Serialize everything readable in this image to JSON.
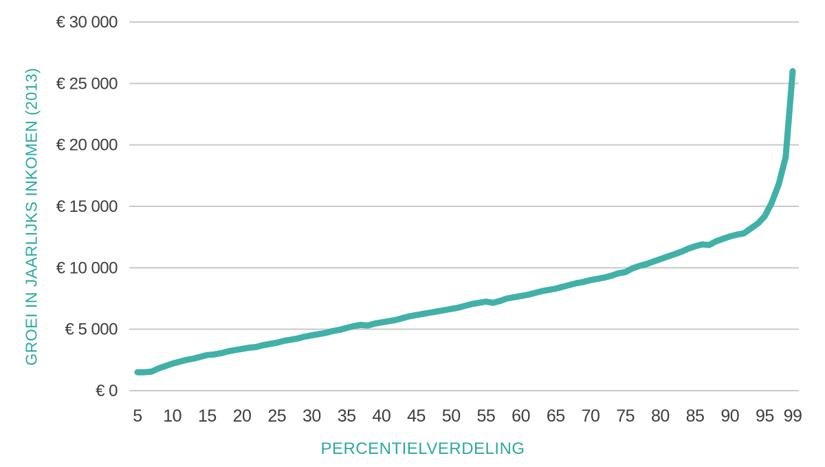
{
  "chart_data": {
    "type": "line",
    "title": "",
    "xlabel": "PERCENTIELVERDELING",
    "ylabel": "GROEI IN JAARLIJKS INKOMEN (2013)",
    "x": [
      5,
      6,
      7,
      8,
      9,
      10,
      11,
      12,
      13,
      14,
      15,
      16,
      17,
      18,
      19,
      20,
      21,
      22,
      23,
      24,
      25,
      26,
      27,
      28,
      29,
      30,
      31,
      32,
      33,
      34,
      35,
      36,
      37,
      38,
      39,
      40,
      41,
      42,
      43,
      44,
      45,
      46,
      47,
      48,
      49,
      50,
      51,
      52,
      53,
      54,
      55,
      56,
      57,
      58,
      59,
      60,
      61,
      62,
      63,
      64,
      65,
      66,
      67,
      68,
      69,
      70,
      71,
      72,
      73,
      74,
      75,
      76,
      77,
      78,
      79,
      80,
      81,
      82,
      83,
      84,
      85,
      86,
      87,
      88,
      89,
      90,
      91,
      92,
      93,
      94,
      95,
      96,
      97,
      98,
      99
    ],
    "values": [
      1500,
      1500,
      1550,
      1800,
      2000,
      2200,
      2350,
      2500,
      2600,
      2750,
      2900,
      2950,
      3050,
      3200,
      3300,
      3400,
      3500,
      3550,
      3700,
      3800,
      3900,
      4050,
      4150,
      4250,
      4400,
      4500,
      4600,
      4700,
      4850,
      4950,
      5100,
      5250,
      5350,
      5300,
      5450,
      5550,
      5650,
      5750,
      5900,
      6050,
      6150,
      6250,
      6350,
      6450,
      6550,
      6650,
      6750,
      6900,
      7050,
      7150,
      7250,
      7150,
      7300,
      7500,
      7600,
      7700,
      7800,
      7950,
      8100,
      8200,
      8300,
      8450,
      8600,
      8750,
      8850,
      9000,
      9100,
      9200,
      9350,
      9550,
      9650,
      9950,
      10150,
      10300,
      10500,
      10700,
      10900,
      11100,
      11300,
      11550,
      11750,
      11900,
      11850,
      12150,
      12350,
      12550,
      12700,
      12800,
      13200,
      13600,
      14200,
      15300,
      16800,
      19000,
      26000
    ],
    "ylim": [
      0,
      30000
    ],
    "y_ticks": [
      0,
      5000,
      10000,
      15000,
      20000,
      25000,
      30000
    ],
    "y_tick_labels": [
      "€ 0",
      "€ 5 000",
      "€ 10 000",
      "€ 15 000",
      "€ 20 000",
      "€ 25 000",
      "€ 30 000"
    ],
    "x_tick_values": [
      5,
      10,
      15,
      20,
      25,
      30,
      35,
      40,
      45,
      50,
      55,
      60,
      65,
      70,
      75,
      80,
      85,
      90,
      95,
      99
    ],
    "grid": "horizontal",
    "legend": "none",
    "colors": {
      "line": "#41b1a8",
      "axis_title": "#2ba9a0",
      "tick_label": "#3d3d3d",
      "gridline": "#c9c9c9",
      "background": "#ffffff"
    }
  }
}
